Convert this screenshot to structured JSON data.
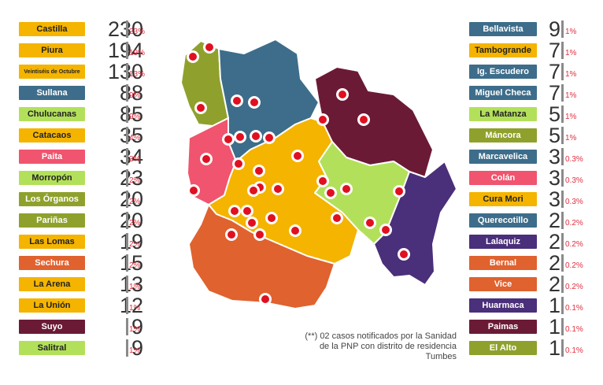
{
  "left": [
    {
      "name": "Castilla",
      "count": "230",
      "pct": "23%",
      "color": "#f4b400",
      "text": "#222"
    },
    {
      "name": "Piura",
      "count": "194",
      "pct": "19%",
      "color": "#f4b400",
      "text": "#222"
    },
    {
      "name": "Veintiséis de Octubre",
      "count": "130",
      "pct": "13%",
      "color": "#f4b400",
      "text": "#222",
      "small": true
    },
    {
      "name": "Sullana",
      "count": "88",
      "pct": "9%",
      "color": "#3d6d8a",
      "text": "#ffffff"
    },
    {
      "name": "Chulucanas",
      "count": "85",
      "pct": "9%",
      "color": "#b3e05a",
      "text": "#222"
    },
    {
      "name": "Catacaos",
      "count": "35",
      "pct": "4%",
      "color": "#f4b400",
      "text": "#222"
    },
    {
      "name": "Paita",
      "count": "34",
      "pct": "3%",
      "color": "#f0546e",
      "text": "#ffffff"
    },
    {
      "name": "Morropón",
      "count": "23",
      "pct": "2%",
      "color": "#b3e05a",
      "text": "#222"
    },
    {
      "name": "Los Órganos",
      "count": "20",
      "pct": "2%",
      "color": "#8fa12c",
      "text": "#ffffff"
    },
    {
      "name": "Pariñas",
      "count": "20",
      "pct": "2%",
      "color": "#8fa12c",
      "text": "#ffffff"
    },
    {
      "name": "Las Lomas",
      "count": "19",
      "pct": "2%",
      "color": "#f4b400",
      "text": "#222"
    },
    {
      "name": "Sechura",
      "count": "15",
      "pct": "2%",
      "color": "#e0622f",
      "text": "#ffffff"
    },
    {
      "name": "La Arena",
      "count": "13",
      "pct": "1%",
      "color": "#f4b400",
      "text": "#222"
    },
    {
      "name": "La Unión",
      "count": "12",
      "pct": "1%",
      "color": "#f4b400",
      "text": "#222"
    },
    {
      "name": "Suyo",
      "count": "9",
      "pct": "1%",
      "color": "#6b1a35",
      "text": "#ffffff"
    },
    {
      "name": "Salitral",
      "count": "9",
      "pct": "1%",
      "color": "#b3e05a",
      "text": "#222"
    }
  ],
  "right": [
    {
      "name": "Bellavista",
      "count": "9",
      "pct": "1%",
      "color": "#3d6d8a",
      "text": "#ffffff"
    },
    {
      "name": "Tambogrande",
      "count": "7",
      "pct": "1%",
      "color": "#f4b400",
      "text": "#222"
    },
    {
      "name": "Ig. Escudero",
      "count": "7",
      "pct": "1%",
      "color": "#3d6d8a",
      "text": "#ffffff"
    },
    {
      "name": "Miguel Checa",
      "count": "7",
      "pct": "1%",
      "color": "#3d6d8a",
      "text": "#ffffff"
    },
    {
      "name": "La Matanza",
      "count": "5",
      "pct": "1%",
      "color": "#b3e05a",
      "text": "#222"
    },
    {
      "name": "Máncora",
      "count": "5",
      "pct": "1%",
      "color": "#8fa12c",
      "text": "#ffffff"
    },
    {
      "name": "Marcavelica",
      "count": "3",
      "pct": "0.3%",
      "color": "#3d6d8a",
      "text": "#ffffff"
    },
    {
      "name": "Colán",
      "count": "3",
      "pct": "0.3%",
      "color": "#f0546e",
      "text": "#ffffff"
    },
    {
      "name": "Cura Mori",
      "count": "3",
      "pct": "0.3%",
      "color": "#f4b400",
      "text": "#222"
    },
    {
      "name": "Querecotillo",
      "count": "2",
      "pct": "0.2%",
      "color": "#3d6d8a",
      "text": "#ffffff"
    },
    {
      "name": "Lalaquiz",
      "count": "2",
      "pct": "0.2%",
      "color": "#4a2f7a",
      "text": "#ffffff"
    },
    {
      "name": "Bernal",
      "count": "2",
      "pct": "0.2%",
      "color": "#e0622f",
      "text": "#ffffff"
    },
    {
      "name": "Vice",
      "count": "2",
      "pct": "0.2%",
      "color": "#e0622f",
      "text": "#ffffff"
    },
    {
      "name": "Huarmaca",
      "count": "1",
      "pct": "0.1%",
      "color": "#4a2f7a",
      "text": "#ffffff"
    },
    {
      "name": "Paimas",
      "count": "1",
      "pct": "0.1%",
      "color": "#6b1a35",
      "text": "#ffffff"
    },
    {
      "name": "El Alto",
      "count": "1",
      "pct": "0.1%",
      "color": "#8fa12c",
      "text": "#ffffff"
    }
  ],
  "note": "(**) 02 casos notificados por la Sanidad de la PNP con distrito de residencia Tumbes",
  "map": {
    "colors": {
      "talara": "#8fa12c",
      "sullana": "#3d6d8a",
      "paita": "#f0546e",
      "piura": "#f4b400",
      "ayabaca": "#6b1a35",
      "morropon": "#b3e05a",
      "huancabamba": "#4a2f7a",
      "sechura": "#e0622f",
      "dot": "#e01020"
    }
  }
}
